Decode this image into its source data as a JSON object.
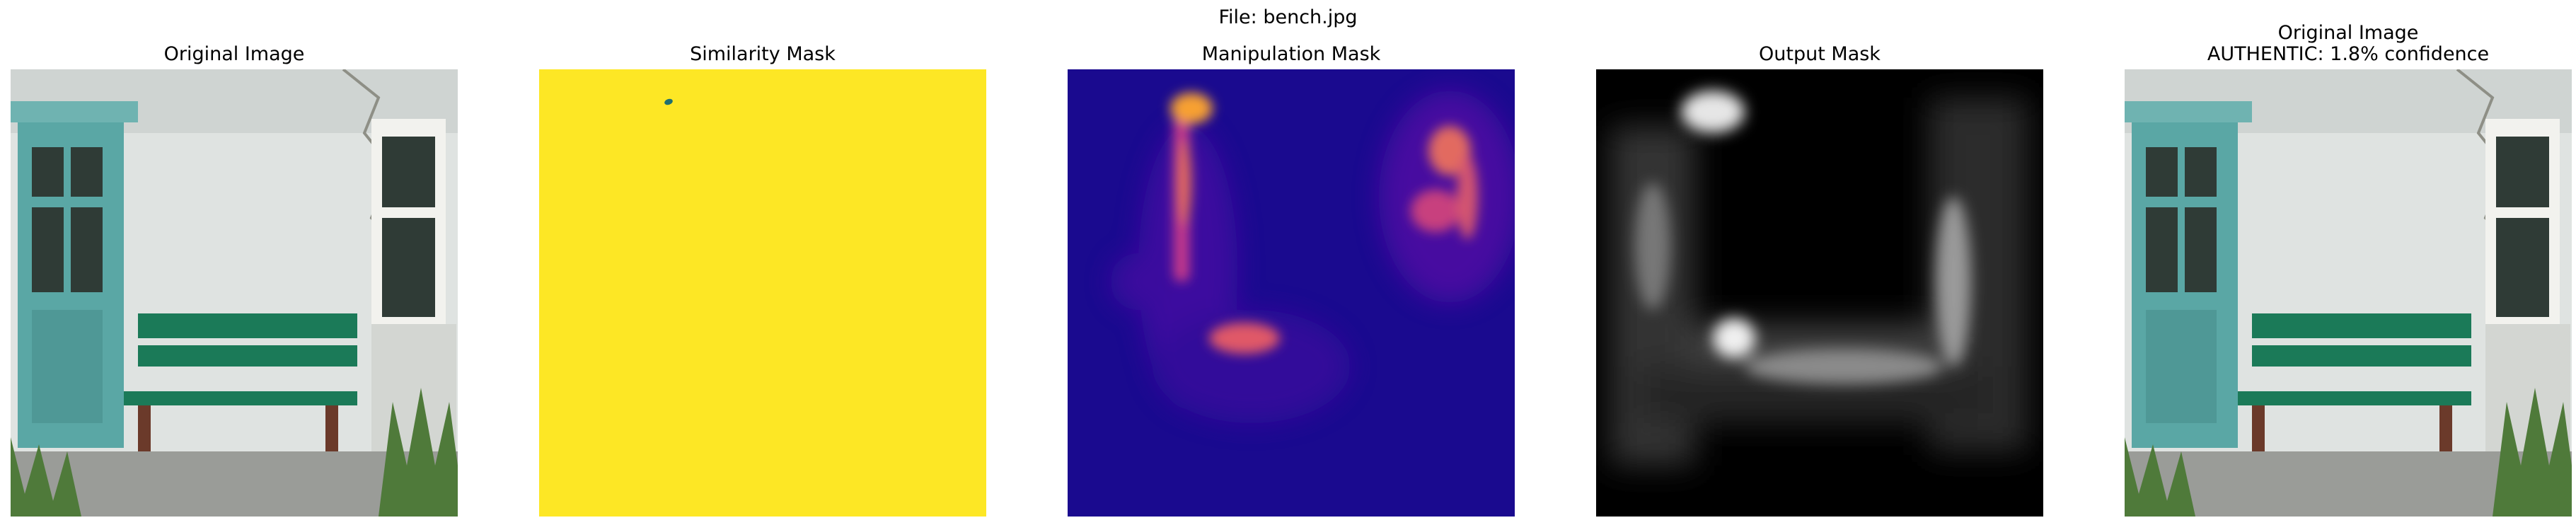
{
  "figure": {
    "suptitle": "File: bench.jpg"
  },
  "panels": [
    {
      "title": "Original Image",
      "kind": "photo"
    },
    {
      "title": "Similarity Mask",
      "kind": "similarity-mask",
      "fill_color": "#fde725",
      "blob_color": "#1f6f6f"
    },
    {
      "title": "Manipulation Mask",
      "kind": "heatmap-plasma",
      "base_color": "#1a0a8f"
    },
    {
      "title": "Output Mask",
      "kind": "heatmap-gray",
      "base_color": "#000000"
    },
    {
      "title": "Original Image",
      "subtitle": "AUTHENTIC: 1.8% confidence",
      "kind": "photo"
    }
  ],
  "colors": {
    "wall": "#dfe3e1",
    "door": "#5aa7a5",
    "bench_green": "#1b7a58",
    "bench_legs": "#6b3a2a",
    "grass": "#4f7a3a",
    "pavement": "#9a9c98",
    "window_frame": "#f2f2ee",
    "window_glass": "#2f3b36"
  }
}
